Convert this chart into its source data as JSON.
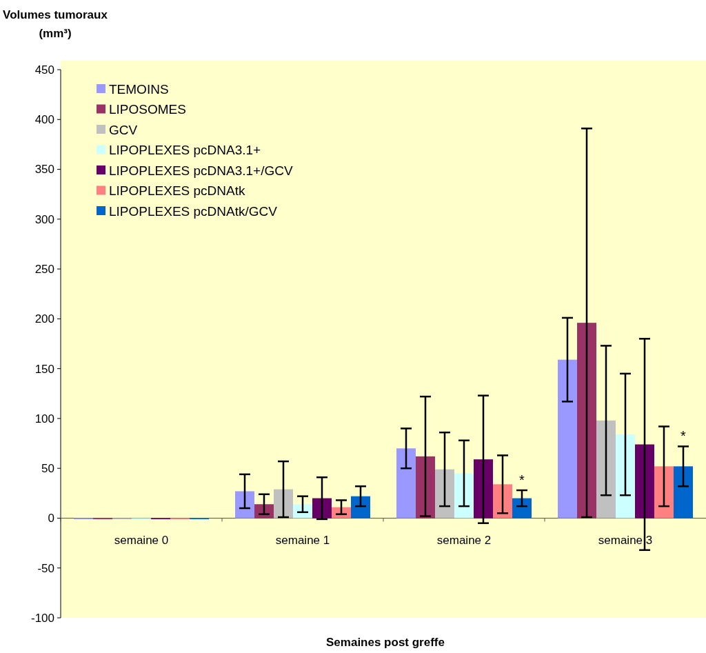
{
  "chart_data": {
    "type": "bar",
    "ylabel": "Volumes tumoraux (mm³)",
    "xlabel": "Semaines post greffe",
    "categories": [
      "semaine 0",
      "semaine 1",
      "semaine 2",
      "semaine 3"
    ],
    "series": [
      {
        "name": "TEMOINS",
        "color": "#9999ff",
        "values": [
          0,
          27,
          70,
          159
        ],
        "errors": [
          null,
          17,
          20,
          42
        ]
      },
      {
        "name": "LIPOSOMES",
        "color": "#993366",
        "values": [
          0,
          14,
          62,
          196
        ],
        "errors": [
          null,
          10,
          60,
          195
        ]
      },
      {
        "name": "GCV",
        "color": "#c0c0c0",
        "values": [
          0,
          29,
          49,
          98
        ],
        "errors": [
          null,
          28,
          37,
          75
        ]
      },
      {
        "name": "LIPOPLEXES pcDNA3.1+",
        "color": "#ccffff",
        "values": [
          0,
          14,
          45,
          84
        ],
        "errors": [
          null,
          8,
          33,
          61
        ]
      },
      {
        "name": "LIPOPLEXES pcDNA3.1+/GCV",
        "color": "#660066",
        "values": [
          0,
          20,
          59,
          74
        ],
        "errors": [
          null,
          21,
          64,
          106
        ]
      },
      {
        "name": "LIPOPLEXES pcDNAtk",
        "color": "#ff8080",
        "values": [
          0,
          11,
          34,
          52
        ],
        "errors": [
          null,
          7,
          29,
          40
        ]
      },
      {
        "name": "LIPOPLEXES pcDNAtk/GCV",
        "color": "#0066cc",
        "values": [
          0,
          22,
          20,
          52
        ],
        "errors": [
          null,
          10,
          8,
          20
        ]
      }
    ],
    "annotations": [
      "*",
      "*"
    ],
    "ylim": [
      -100,
      450
    ],
    "yticks": [
      -100,
      -50,
      0,
      50,
      100,
      150,
      200,
      250,
      300,
      350,
      400,
      450
    ],
    "grid": false,
    "legend": "top left"
  }
}
